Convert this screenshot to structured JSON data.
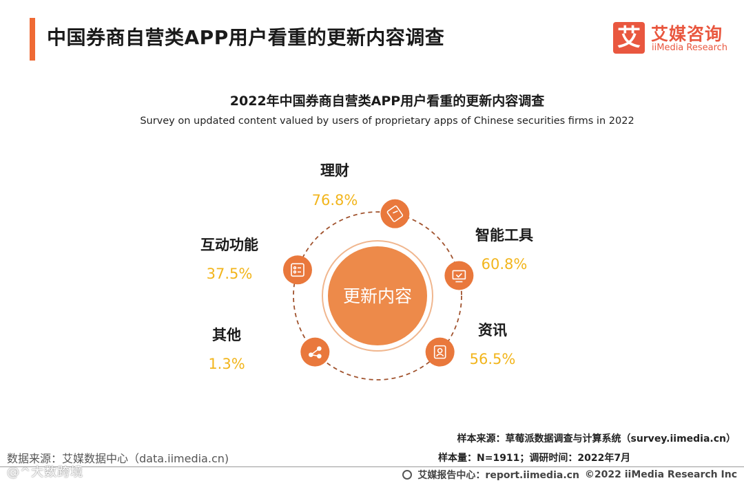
{
  "header": {
    "title": "中国券商自营类APP用户看重的更新内容调查",
    "logo_cn": "艾媒咨询",
    "logo_en": "iiMedia Research",
    "logo_mark": "艾"
  },
  "chart_data": {
    "type": "radial",
    "title": "2022年中国券商自营类APP用户看重的更新内容调查",
    "subtitle": "Survey on updated content valued by users of proprietary apps of Chinese securities firms in 2022",
    "center_label": "更新内容",
    "categories": [
      "理财",
      "智能工具",
      "资讯",
      "其他",
      "互动功能"
    ],
    "values": [
      76.8,
      60.8,
      56.5,
      1.3,
      37.5
    ],
    "value_labels": [
      "76.8%",
      "60.8%",
      "56.5%",
      "1.3%",
      "37.5%"
    ],
    "icons": [
      "ticket-icon",
      "monitor-icon",
      "portrait-icon",
      "list-icon",
      "share-icon"
    ],
    "colors": {
      "node": "#e9783c",
      "center": "#ed8a4a",
      "value": "#f2b51c",
      "ring": "#a0522d"
    }
  },
  "footer": {
    "source_left": "数据来源：艾媒数据中心（data.iimedia.cn)",
    "sample_source": "样本来源：草莓派数据调查与计算系统（survey.iimedia.cn）",
    "sample_size": "样本量：N=1911；调研时间：2022年7月",
    "report_center": "艾媒报告中心：report.iimedia.cn",
    "copyright": "©2022  iiMedia Research  Inc",
    "watermark": "@^大数跨境"
  }
}
